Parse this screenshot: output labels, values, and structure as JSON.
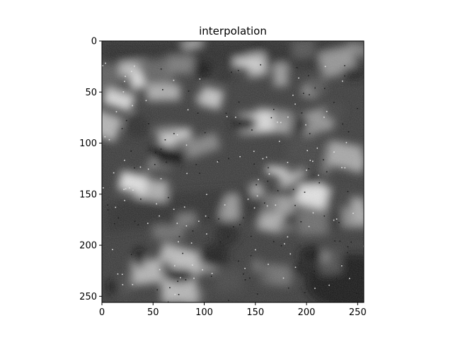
{
  "chart_data": {
    "type": "heatmap",
    "title": "interpolation",
    "xlabel": "",
    "ylabel": "",
    "colormap": "gray",
    "image_size": [
      256,
      256
    ],
    "xlim": [
      0,
      256
    ],
    "ylim": [
      256,
      0
    ],
    "x_ticks": [
      0,
      50,
      100,
      150,
      200,
      250
    ],
    "y_ticks": [
      0,
      50,
      100,
      150,
      200,
      250
    ],
    "x_tick_labels": [
      "0",
      "50",
      "100",
      "150",
      "200",
      "250"
    ],
    "y_tick_labels": [
      "0",
      "50",
      "100",
      "150",
      "200",
      "250"
    ],
    "grid": false,
    "legend": "none",
    "colors": {
      "axes_edge": "#000000",
      "background": "#ffffff"
    }
  }
}
